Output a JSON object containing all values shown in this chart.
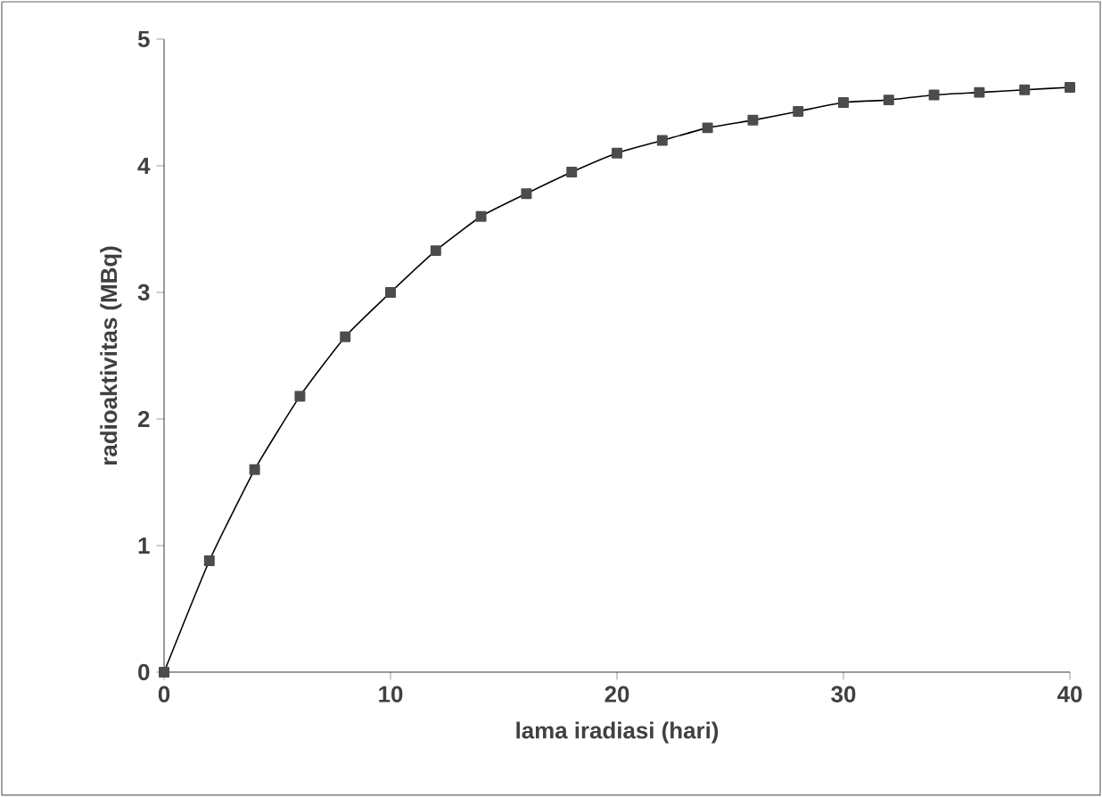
{
  "chart_data": {
    "type": "line",
    "xlabel": "lama iradiasi (hari)",
    "ylabel": "radioaktivitas (MBq)",
    "x": [
      0,
      2,
      4,
      6,
      8,
      10,
      12,
      14,
      16,
      18,
      20,
      22,
      24,
      26,
      28,
      30,
      32,
      34,
      36,
      38,
      40
    ],
    "series": [
      {
        "color": "#000000",
        "values": [
          0,
          0.88,
          1.6,
          2.18,
          2.65,
          3.0,
          3.33,
          3.6,
          3.78,
          3.95,
          4.1,
          4.2,
          4.3,
          4.36,
          4.43,
          4.5,
          4.52,
          4.56,
          4.58,
          4.6,
          4.62
        ]
      }
    ],
    "xlim": [
      0,
      40
    ],
    "xticks": [
      0,
      10,
      20,
      30,
      40
    ],
    "ylim": [
      0,
      5
    ],
    "yticks": [
      0,
      1,
      2,
      3,
      4,
      5
    ],
    "marker": "square"
  }
}
